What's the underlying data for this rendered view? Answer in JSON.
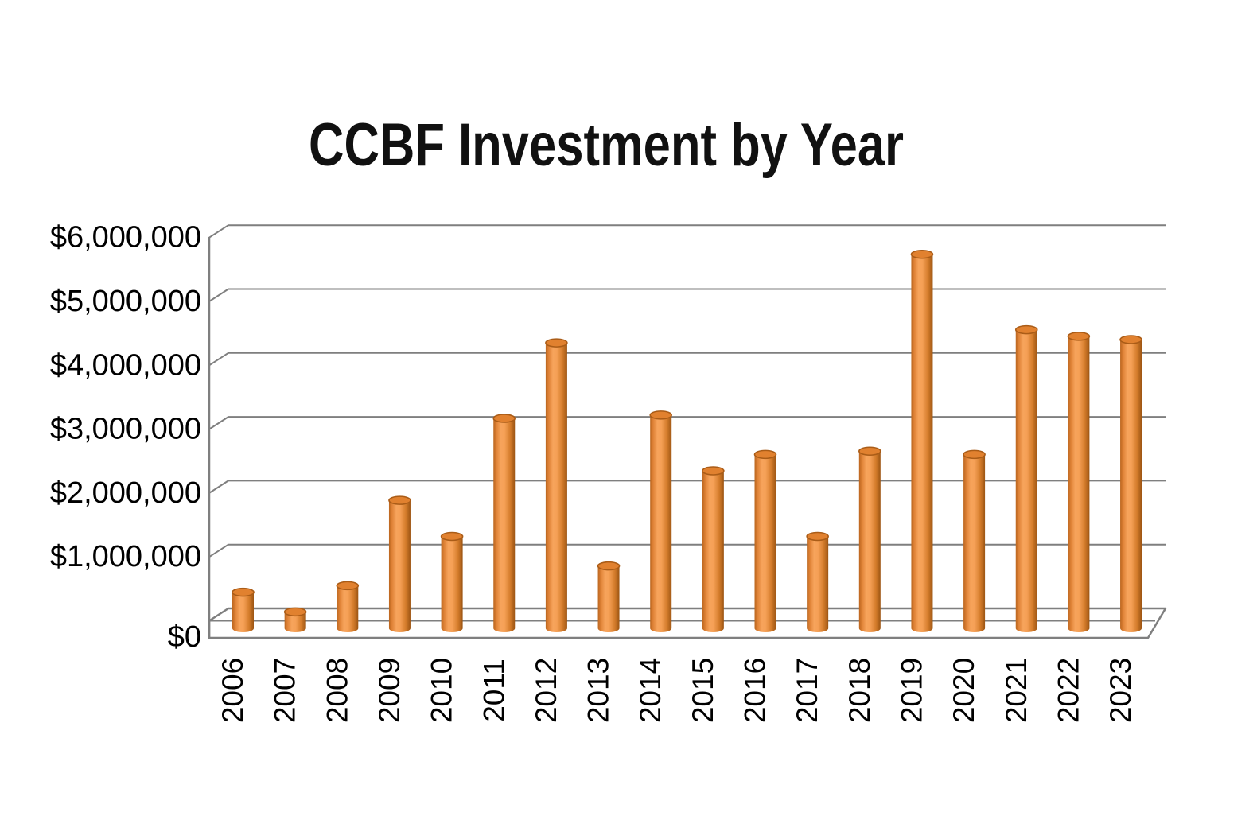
{
  "title": "CCBF Investment by Year",
  "colors": {
    "bar": "#ED8B38",
    "bar_highlight": "#F7A45C",
    "bar_shadow": "#9C5513",
    "bar_top": "#E1812F",
    "bar_top_rim": "#AA5C17",
    "gridline": "#7F7F7F",
    "text": "#000000",
    "background": "#FFFFFF"
  },
  "chart_data": {
    "type": "bar",
    "subtype": "3d-cylinder",
    "title": "CCBF Investment by Year",
    "xlabel": "",
    "ylabel": "",
    "categories": [
      "2006",
      "2007",
      "2008",
      "2009",
      "2010",
      "2011",
      "2012",
      "2013",
      "2014",
      "2015",
      "2016",
      "2017",
      "2018",
      "2019",
      "2020",
      "2021",
      "2022",
      "2023"
    ],
    "values": [
      550000,
      250000,
      650000,
      1950000,
      1400000,
      3200000,
      4350000,
      950000,
      3250000,
      2400000,
      2650000,
      1400000,
      2700000,
      5700000,
      2650000,
      4550000,
      4450000,
      4400000
    ],
    "ylim": [
      0,
      6000000
    ],
    "ytick_step": 1000000,
    "ytick_labels": [
      "$0",
      "$1,000,000",
      "$2,000,000",
      "$3,000,000",
      "$4,000,000",
      "$5,000,000",
      "$6,000,000"
    ],
    "grid": true,
    "legend": false,
    "orientation": "vertical"
  }
}
